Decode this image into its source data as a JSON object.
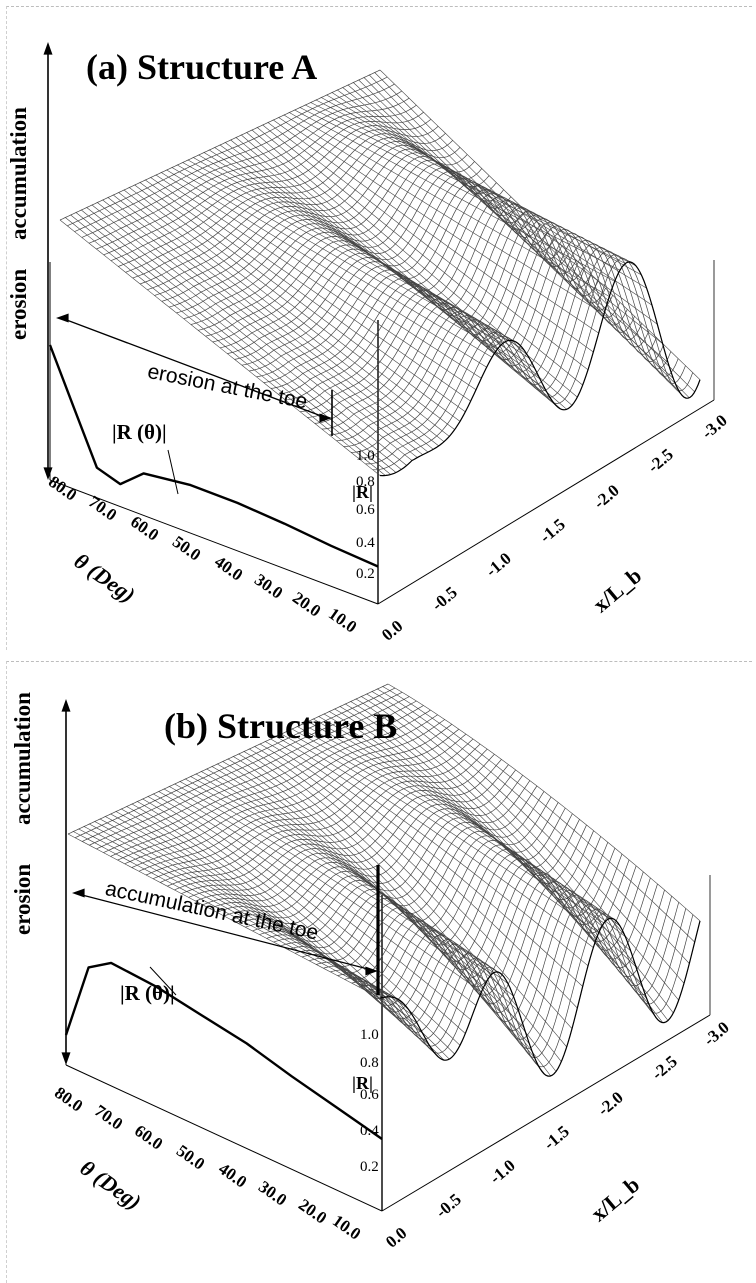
{
  "chart_data": [
    {
      "type": "surface3d",
      "title": "(a) Structure A",
      "vertical_axis_labels": [
        "accumulation",
        "erosion"
      ],
      "annotation": "erosion at the toe",
      "curve_label": "|R (θ)|",
      "xlabel": "x/L_b",
      "ylabel": "θ (Deg)",
      "zlabel": "|R|",
      "x_ticks": [
        "0.0",
        "-0.5",
        "-1.0",
        "-1.5",
        "-2.0",
        "-2.5",
        "-3.0"
      ],
      "theta_ticks": [
        "80.0",
        "70.0",
        "60.0",
        "50.0",
        "40.0",
        "30.0",
        "20.0",
        "10.0"
      ],
      "r_ticks": [
        "1.0",
        "0.8",
        "0.6",
        "0.4",
        "0.2"
      ],
      "reflection_curve": {
        "theta": [
          80,
          75,
          70,
          65,
          60,
          50,
          40,
          30,
          20,
          10
        ],
        "R": [
          0.9,
          0.55,
          0.2,
          0.15,
          0.28,
          0.32,
          0.32,
          0.3,
          0.27,
          0.25
        ]
      }
    },
    {
      "type": "surface3d",
      "title": "(b) Structure B",
      "vertical_axis_labels": [
        "accumulation",
        "erosion"
      ],
      "annotation": "accumulation at the toe",
      "curve_label": "|R (θ)|",
      "xlabel": "x/L_b",
      "ylabel": "θ (Deg)",
      "zlabel": "|R|",
      "x_ticks": [
        "0.0",
        "-0.5",
        "-1.0",
        "-1.5",
        "-2.0",
        "-2.5",
        "-3.0"
      ],
      "theta_ticks": [
        "80.0",
        "70.0",
        "60.0",
        "50.0",
        "40.0",
        "30.0",
        "20.0",
        "10.0"
      ],
      "r_ticks": [
        "1.0",
        "0.8",
        "0.6",
        "0.4",
        "0.2"
      ],
      "reflection_curve": {
        "theta": [
          80,
          75,
          70,
          60,
          50,
          40,
          30,
          20,
          10
        ],
        "R": [
          0.2,
          0.72,
          0.82,
          0.8,
          0.75,
          0.7,
          0.62,
          0.55,
          0.48
        ]
      }
    }
  ]
}
